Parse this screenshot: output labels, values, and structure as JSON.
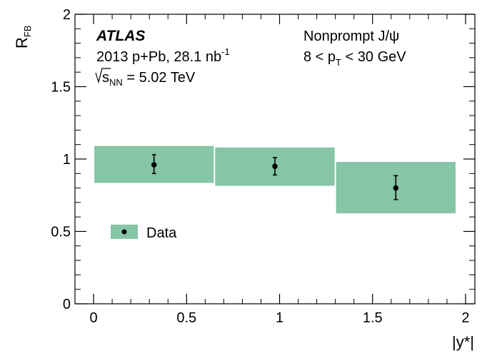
{
  "chart_data": {
    "type": "scatter",
    "xlabel": "|y*|",
    "ylabel": {
      "main": "R",
      "sub": "FB"
    },
    "xlim": [
      -0.1,
      2.05
    ],
    "ylim": [
      0,
      2
    ],
    "x_ticks": [
      "0",
      "0.5",
      "1",
      "1.5",
      "2"
    ],
    "y_ticks": [
      "0",
      "0.5",
      "1",
      "1.5",
      "2"
    ],
    "grid": false,
    "legend_position": "left-middle",
    "colors": {
      "band": "#86c5a5",
      "marker": "#000000"
    },
    "series": [
      {
        "name": "Data",
        "points": [
          {
            "x": 0.325,
            "y": 0.96,
            "stat_lo": 0.9,
            "stat_hi": 1.03,
            "x_lo": 0.0,
            "x_hi": 0.65,
            "sys_lo": 0.835,
            "sys_hi": 1.09
          },
          {
            "x": 0.975,
            "y": 0.95,
            "stat_lo": 0.89,
            "stat_hi": 1.01,
            "x_lo": 0.65,
            "x_hi": 1.3,
            "sys_lo": 0.815,
            "sys_hi": 1.08
          },
          {
            "x": 1.625,
            "y": 0.8,
            "stat_lo": 0.72,
            "stat_hi": 0.885,
            "x_lo": 1.3,
            "x_hi": 1.95,
            "sys_lo": 0.625,
            "sys_hi": 0.98
          }
        ]
      }
    ],
    "annotations": {
      "experiment": "ATLAS",
      "dataset": {
        "text": "2013 p+Pb, 28.1 nb",
        "sup": "-1"
      },
      "energy": {
        "sym": "s",
        "sub": "NN",
        "text": " = 5.02 TeV"
      },
      "process": "Nonprompt J/ψ",
      "pt_range": {
        "pre": "8 < p",
        "sub": "T",
        "post": " < 30 GeV"
      }
    }
  }
}
